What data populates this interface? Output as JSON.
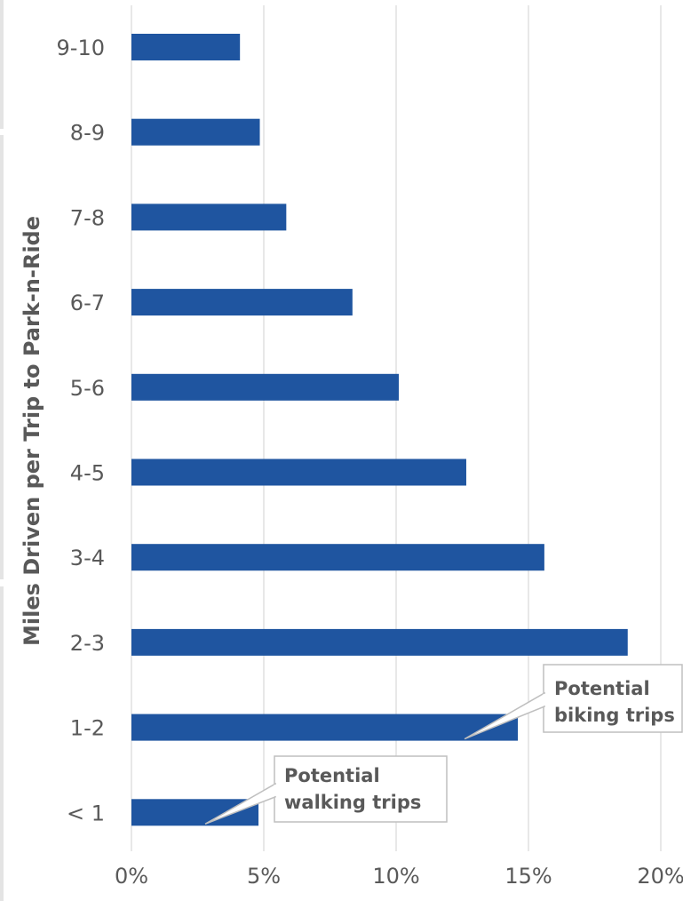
{
  "chart_data": {
    "type": "bar",
    "orientation": "horizontal",
    "categories": [
      "9-10",
      "8-9",
      "7-8",
      "6-7",
      "5-6",
      "4-5",
      "3-4",
      "2-3",
      "1-2",
      "< 1"
    ],
    "values": [
      4.1,
      4.85,
      5.85,
      8.35,
      10.1,
      12.65,
      15.6,
      18.75,
      14.6,
      4.8
    ],
    "xlabel": "",
    "ylabel": "Miles Driven per Trip to Park-n-Ride",
    "xlim": [
      0,
      20
    ],
    "xticks": [
      "0%",
      "5%",
      "10%",
      "15%",
      "20%"
    ],
    "xtick_values": [
      0,
      5,
      10,
      15,
      20
    ],
    "grid": true,
    "bar_color": "#1f55a0",
    "annotations": [
      {
        "lines": [
          "Potential",
          "biking trips"
        ],
        "category": "1-2"
      },
      {
        "lines": [
          "Potential",
          "walking trips"
        ],
        "category": "< 1"
      }
    ]
  }
}
